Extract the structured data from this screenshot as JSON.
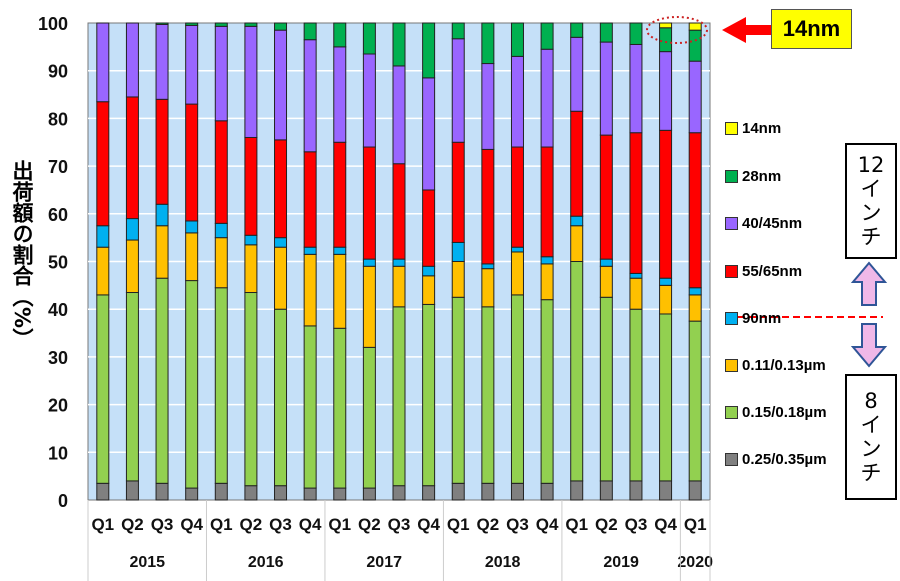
{
  "chart_data": {
    "type": "bar",
    "stacked": true,
    "ylabel": "出荷額の割合（%）",
    "ylim": [
      0,
      100
    ],
    "yticks": [
      0,
      10,
      20,
      30,
      40,
      50,
      60,
      70,
      80,
      90,
      100
    ],
    "grid": true,
    "categories": [
      "Q1",
      "Q2",
      "Q3",
      "Q4",
      "Q1",
      "Q2",
      "Q3",
      "Q4",
      "Q1",
      "Q2",
      "Q3",
      "Q4",
      "Q1",
      "Q2",
      "Q3",
      "Q4",
      "Q1",
      "Q2",
      "Q3",
      "Q4",
      "Q1"
    ],
    "year_groups": [
      {
        "label": "2015",
        "count": 4
      },
      {
        "label": "2016",
        "count": 4
      },
      {
        "label": "2017",
        "count": 4
      },
      {
        "label": "2018",
        "count": 4
      },
      {
        "label": "2019",
        "count": 4
      },
      {
        "label": "2020",
        "count": 1
      }
    ],
    "series": [
      {
        "name": "0.25/0.35µm",
        "color": "#808080",
        "values": [
          3.5,
          4,
          3.5,
          2.5,
          3.5,
          3,
          3,
          2.5,
          2.5,
          2.5,
          3,
          3,
          3.5,
          3.5,
          3.5,
          3.5,
          4,
          4,
          4,
          4,
          4
        ]
      },
      {
        "name": "0.15/0.18µm",
        "color": "#92d050",
        "values": [
          39.5,
          39.5,
          43,
          43.5,
          41,
          40.5,
          37,
          34,
          33.5,
          29.5,
          37.5,
          38,
          39,
          37,
          39.5,
          38.5,
          46,
          38.5,
          36,
          35,
          33.5
        ]
      },
      {
        "name": "0.11/0.13µm",
        "color": "#ffc000",
        "values": [
          10,
          11,
          11,
          10,
          10.5,
          10,
          13,
          15,
          15.5,
          17,
          8.5,
          6,
          7.5,
          8,
          9,
          7.5,
          7.5,
          6.5,
          6.5,
          6,
          5.5
        ]
      },
      {
        "name": "90nm",
        "color": "#00b0f0",
        "values": [
          4.5,
          4.5,
          4.5,
          2.5,
          3,
          2,
          2,
          1.5,
          1.5,
          1.5,
          1.5,
          2,
          4,
          1,
          1,
          1.5,
          2,
          1.5,
          1,
          1.5,
          1.5
        ]
      },
      {
        "name": "55/65nm",
        "color": "#ff0000",
        "values": [
          26,
          25.5,
          22,
          24.5,
          21.5,
          20.5,
          20.5,
          20,
          22,
          23.5,
          20,
          16,
          21,
          24,
          21,
          23,
          22,
          26,
          29.5,
          31,
          32.5
        ]
      },
      {
        "name": "40/45nm",
        "color": "#9966ff",
        "values": [
          16.5,
          15.5,
          15.7,
          16.5,
          19.8,
          23.3,
          23,
          23.5,
          20,
          19.5,
          20.5,
          23.5,
          21.7,
          18,
          19,
          20.5,
          15.5,
          19.5,
          18.5,
          16.5,
          15
        ]
      },
      {
        "name": "28nm",
        "color": "#00b050",
        "values": [
          0,
          0,
          0.3,
          0.5,
          0.7,
          0.7,
          1.5,
          3.5,
          5,
          6.5,
          9,
          11.5,
          3.3,
          8.5,
          7,
          5.5,
          3,
          4,
          4.5,
          5,
          6.5
        ]
      },
      {
        "name": "14nm",
        "color": "#ffff00",
        "values": [
          0,
          0,
          0,
          0,
          0,
          0,
          0,
          0,
          0,
          0,
          0,
          0,
          0,
          0,
          0,
          0,
          0,
          0,
          0,
          1,
          1.5
        ]
      }
    ],
    "legend_order": [
      "14nm",
      "28nm",
      "40/45nm",
      "55/65nm",
      "90nm",
      "0.11/0.13µm",
      "0.15/0.18µm",
      "0.25/0.35µm"
    ],
    "legend_position": "right",
    "annotations": {
      "callout": "14nm",
      "inch12": [
        "12",
        "イ",
        "ン",
        "チ"
      ],
      "inch8": [
        "8",
        "イ",
        "ン",
        "チ"
      ]
    }
  }
}
